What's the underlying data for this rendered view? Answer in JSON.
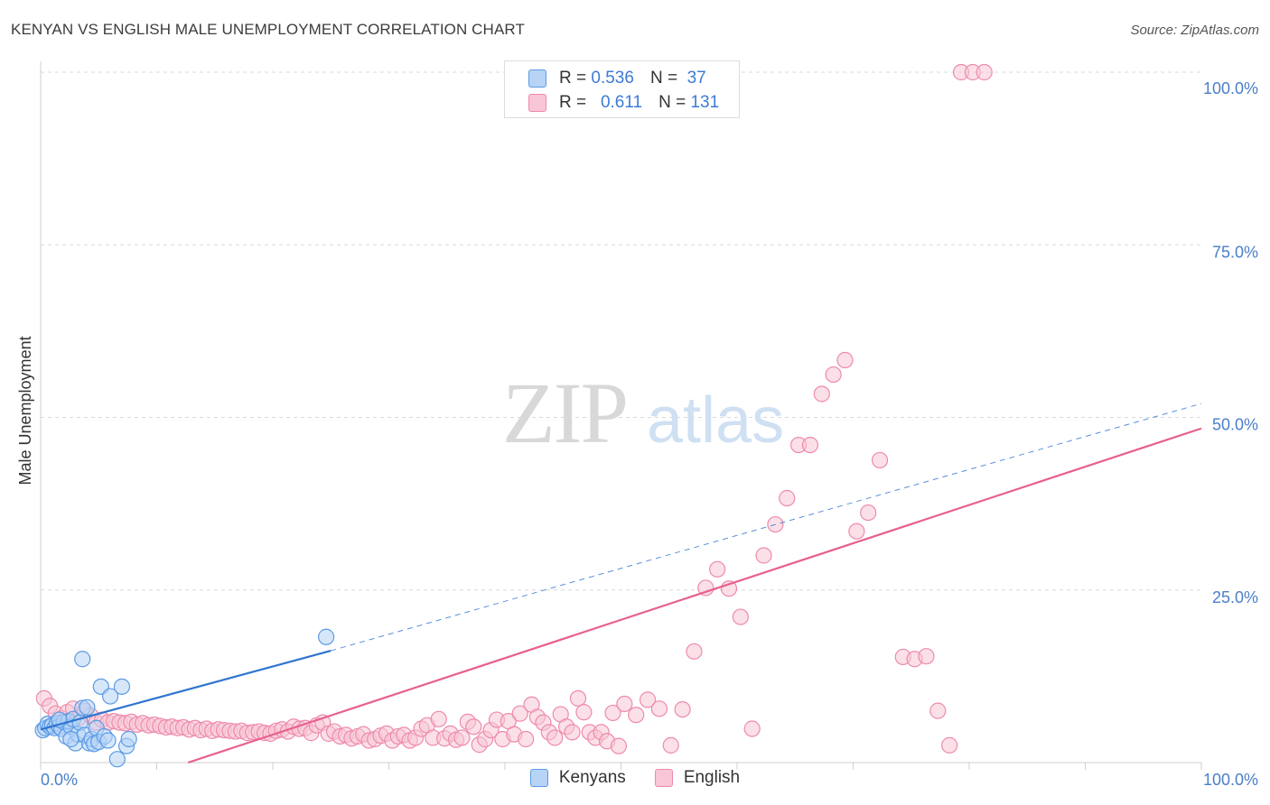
{
  "title": "KENYAN VS ENGLISH MALE UNEMPLOYMENT CORRELATION CHART",
  "source": "Source: ZipAtlas.com",
  "watermark": {
    "part1": "ZIP",
    "part2": "atlas"
  },
  "colors": {
    "blue_fill": "#b7d3f5",
    "blue_stroke": "#5b9be6",
    "blue_line": "#2f74d0",
    "pink_fill": "#f8c6d6",
    "pink_stroke": "#ee8aab",
    "pink_line": "#e8608d",
    "tick": "#4a7fc9",
    "grid": "#d9d9d9"
  },
  "legend": {
    "rows": [
      {
        "r_label": "R =",
        "r_value": "0.536",
        "n_label": "N =",
        "n_value": "37"
      },
      {
        "r_label": "R =",
        "r_value": "0.611",
        "n_label": "N =",
        "n_value": "131"
      }
    ]
  },
  "bottom_legend": [
    "Kenyans",
    "English"
  ],
  "chart_data": {
    "type": "scatter",
    "ylabel": "Male Unemployment",
    "xlim": [
      0,
      100
    ],
    "ylim": [
      0,
      100
    ],
    "x_tick_labels": [
      "0.0%",
      "100.0%"
    ],
    "y_tick_labels": [
      "25.0%",
      "50.0%",
      "75.0%",
      "100.0%"
    ],
    "y_ticks": [
      25,
      50,
      75,
      100
    ],
    "grid": true,
    "series": [
      {
        "name": "Kenyans",
        "color": "blue",
        "r": "0.536",
        "n": "37",
        "trend": {
          "x0": 0,
          "y0": 4.8,
          "x1": 25,
          "y1": 16.2,
          "dash_to_x": 100,
          "dash_to_y": 52.0
        },
        "points": [
          [
            0.2,
            4.7
          ],
          [
            0.4,
            5.0
          ],
          [
            0.6,
            5.6
          ],
          [
            0.8,
            5.2
          ],
          [
            1.0,
            5.4
          ],
          [
            1.2,
            5.0
          ],
          [
            1.4,
            5.7
          ],
          [
            1.6,
            5.2
          ],
          [
            1.8,
            4.9
          ],
          [
            2.0,
            5.9
          ],
          [
            2.2,
            3.8
          ],
          [
            2.4,
            6.0
          ],
          [
            2.6,
            5.2
          ],
          [
            2.8,
            6.3
          ],
          [
            3.0,
            2.8
          ],
          [
            3.2,
            4.1
          ],
          [
            3.4,
            5.8
          ],
          [
            3.6,
            7.9
          ],
          [
            3.8,
            4.0
          ],
          [
            4.0,
            8.0
          ],
          [
            4.2,
            2.8
          ],
          [
            4.4,
            3.4
          ],
          [
            4.6,
            2.7
          ],
          [
            4.8,
            5.0
          ],
          [
            5.0,
            3.0
          ],
          [
            5.2,
            11.0
          ],
          [
            5.5,
            3.8
          ],
          [
            5.8,
            3.2
          ],
          [
            6.0,
            9.6
          ],
          [
            6.6,
            0.5
          ],
          [
            7.0,
            11.0
          ],
          [
            7.4,
            2.4
          ],
          [
            7.6,
            3.4
          ],
          [
            2.6,
            3.4
          ],
          [
            3.6,
            15.0
          ],
          [
            24.6,
            18.2
          ],
          [
            1.6,
            6.2
          ]
        ]
      },
      {
        "name": "English",
        "color": "pink",
        "r": "0.611",
        "n": "131",
        "trend": {
          "x0": 12.7,
          "y0": 0,
          "x1": 100,
          "y1": 48.4
        },
        "points": [
          [
            0.3,
            9.3
          ],
          [
            0.8,
            8.2
          ],
          [
            1.3,
            7.1
          ],
          [
            1.8,
            6.4
          ],
          [
            2.3,
            7.3
          ],
          [
            2.8,
            7.8
          ],
          [
            3.3,
            6.5
          ],
          [
            3.8,
            7.5
          ],
          [
            4.3,
            6.8
          ],
          [
            4.8,
            5.8
          ],
          [
            5.3,
            6.2
          ],
          [
            5.8,
            5.8
          ],
          [
            6.3,
            6.0
          ],
          [
            6.8,
            5.8
          ],
          [
            7.3,
            5.7
          ],
          [
            7.8,
            5.9
          ],
          [
            8.3,
            5.5
          ],
          [
            8.8,
            5.7
          ],
          [
            9.3,
            5.4
          ],
          [
            9.8,
            5.5
          ],
          [
            10.3,
            5.3
          ],
          [
            10.8,
            5.1
          ],
          [
            11.3,
            5.2
          ],
          [
            11.8,
            5.0
          ],
          [
            12.3,
            5.1
          ],
          [
            12.8,
            4.8
          ],
          [
            13.3,
            5.0
          ],
          [
            13.8,
            4.7
          ],
          [
            14.3,
            4.9
          ],
          [
            14.8,
            4.6
          ],
          [
            15.3,
            4.8
          ],
          [
            15.8,
            4.7
          ],
          [
            16.3,
            4.6
          ],
          [
            16.8,
            4.5
          ],
          [
            17.3,
            4.6
          ],
          [
            17.8,
            4.3
          ],
          [
            18.3,
            4.4
          ],
          [
            18.8,
            4.5
          ],
          [
            19.3,
            4.3
          ],
          [
            19.8,
            4.2
          ],
          [
            20.3,
            4.6
          ],
          [
            20.8,
            4.8
          ],
          [
            21.3,
            4.5
          ],
          [
            21.8,
            5.2
          ],
          [
            22.3,
            4.9
          ],
          [
            22.8,
            5.0
          ],
          [
            23.3,
            4.3
          ],
          [
            23.8,
            5.4
          ],
          [
            24.3,
            5.8
          ],
          [
            24.8,
            4.2
          ],
          [
            25.3,
            4.5
          ],
          [
            25.8,
            3.8
          ],
          [
            26.3,
            4.0
          ],
          [
            26.8,
            3.5
          ],
          [
            27.3,
            3.8
          ],
          [
            27.8,
            4.1
          ],
          [
            28.3,
            3.2
          ],
          [
            28.8,
            3.4
          ],
          [
            29.3,
            3.9
          ],
          [
            29.8,
            4.2
          ],
          [
            30.3,
            3.2
          ],
          [
            30.8,
            3.8
          ],
          [
            31.3,
            4.0
          ],
          [
            31.8,
            3.2
          ],
          [
            32.3,
            3.6
          ],
          [
            32.8,
            4.9
          ],
          [
            33.3,
            5.4
          ],
          [
            33.8,
            3.6
          ],
          [
            34.3,
            6.3
          ],
          [
            34.8,
            3.5
          ],
          [
            35.3,
            4.2
          ],
          [
            35.8,
            3.3
          ],
          [
            36.3,
            3.6
          ],
          [
            36.8,
            5.9
          ],
          [
            37.3,
            5.2
          ],
          [
            37.8,
            2.6
          ],
          [
            38.3,
            3.4
          ],
          [
            38.8,
            4.7
          ],
          [
            39.3,
            6.2
          ],
          [
            39.8,
            3.4
          ],
          [
            40.3,
            6.0
          ],
          [
            40.8,
            4.1
          ],
          [
            41.3,
            7.1
          ],
          [
            41.8,
            3.4
          ],
          [
            42.3,
            8.4
          ],
          [
            42.8,
            6.6
          ],
          [
            43.3,
            5.8
          ],
          [
            43.8,
            4.4
          ],
          [
            44.3,
            3.6
          ],
          [
            44.8,
            7.0
          ],
          [
            45.3,
            5.2
          ],
          [
            45.8,
            4.4
          ],
          [
            46.3,
            9.3
          ],
          [
            46.8,
            7.3
          ],
          [
            47.3,
            4.4
          ],
          [
            47.8,
            3.6
          ],
          [
            48.3,
            4.4
          ],
          [
            48.8,
            3.1
          ],
          [
            49.3,
            7.2
          ],
          [
            49.8,
            2.4
          ],
          [
            50.3,
            8.5
          ],
          [
            51.3,
            6.9
          ],
          [
            52.3,
            9.1
          ],
          [
            53.3,
            7.8
          ],
          [
            54.3,
            2.5
          ],
          [
            55.3,
            7.7
          ],
          [
            56.3,
            16.1
          ],
          [
            57.3,
            25.3
          ],
          [
            58.3,
            28.0
          ],
          [
            59.3,
            25.2
          ],
          [
            60.3,
            21.1
          ],
          [
            61.3,
            4.9
          ],
          [
            62.3,
            30.0
          ],
          [
            63.3,
            34.5
          ],
          [
            64.3,
            38.3
          ],
          [
            65.3,
            46.0
          ],
          [
            66.3,
            46.0
          ],
          [
            67.3,
            53.4
          ],
          [
            68.3,
            56.2
          ],
          [
            69.3,
            58.3
          ],
          [
            70.3,
            33.5
          ],
          [
            71.3,
            36.2
          ],
          [
            72.3,
            43.8
          ],
          [
            74.3,
            15.3
          ],
          [
            75.3,
            15.0
          ],
          [
            76.3,
            15.4
          ],
          [
            77.3,
            7.5
          ],
          [
            78.3,
            2.5
          ],
          [
            79.3,
            100
          ],
          [
            80.3,
            100
          ],
          [
            81.3,
            100
          ]
        ]
      }
    ]
  }
}
